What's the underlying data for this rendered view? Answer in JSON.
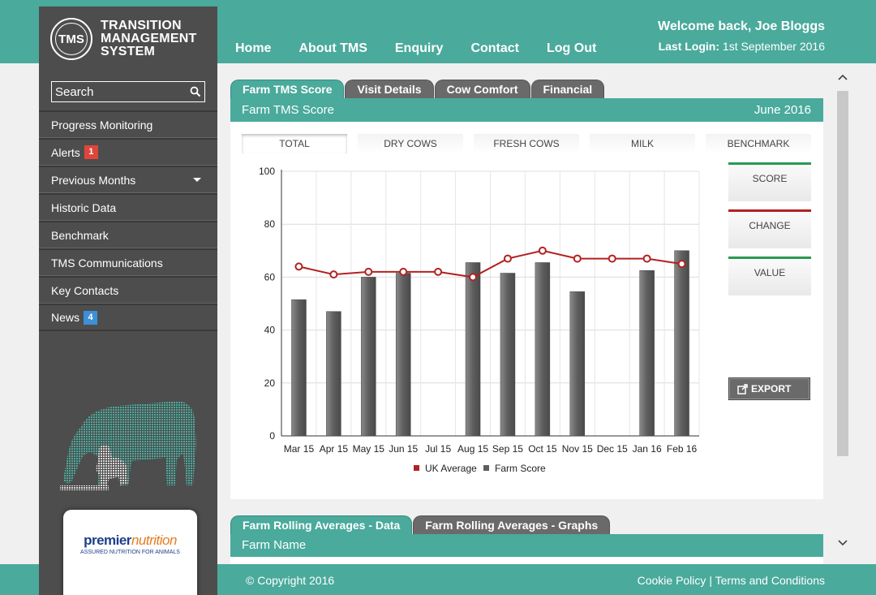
{
  "brand": {
    "badge": "TMS",
    "line1": "TRANSITION",
    "line2": "MANAGEMENT",
    "line3": "SYSTEM"
  },
  "search": {
    "placeholder": "Search"
  },
  "sidebar": {
    "items": [
      {
        "label": "Progress Monitoring"
      },
      {
        "label": "Alerts",
        "badge": "1"
      },
      {
        "label": "Previous Months"
      },
      {
        "label": "Historic Data"
      },
      {
        "label": "Benchmark"
      },
      {
        "label": "TMS Communications"
      },
      {
        "label": "Key Contacts"
      },
      {
        "label": "News",
        "badge": "4"
      }
    ]
  },
  "sponsor": {
    "name_main": "premier",
    "name_accent": "nutrition",
    "tagline": "ASSURED NUTRITION FOR ANIMALS"
  },
  "topnav": [
    "Home",
    "About TMS",
    "Enquiry",
    "Contact",
    "Log Out"
  ],
  "header": {
    "welcome": "Welcome back, Joe Bloggs",
    "last_login_label": "Last Login:",
    "last_login_value": "1st September 2016"
  },
  "tabs": [
    {
      "label": "Farm TMS Score",
      "active": true
    },
    {
      "label": "Visit Details",
      "active": false
    },
    {
      "label": "Cow Comfort",
      "active": false
    },
    {
      "label": "Financial",
      "active": false
    }
  ],
  "panel": {
    "title": "Farm TMS Score",
    "period": "June 2016"
  },
  "subtabs": [
    "TOTAL",
    "DRY COWS",
    "FRESH COWS",
    "MILK",
    "BENCHMARK"
  ],
  "side_cards": [
    "SCORE",
    "CHANGE",
    "VALUE"
  ],
  "export_label": "EXPORT",
  "chart_data": {
    "type": "bar",
    "categories": [
      "Mar 15",
      "Apr 15",
      "May 15",
      "Jun 15",
      "Jul 15",
      "Aug 15",
      "Sep 15",
      "Oct 15",
      "Nov 15",
      "Dec 15",
      "Jan 16",
      "Feb 16"
    ],
    "series": [
      {
        "name": "UK Average",
        "type": "line",
        "color": "#b22222",
        "values": [
          64,
          61,
          62,
          62,
          62,
          60,
          67,
          70,
          67,
          67,
          67,
          65
        ]
      },
      {
        "name": "Farm Score",
        "type": "bar",
        "color": "#5e5e5e",
        "values": [
          51.5,
          47,
          60,
          61.5,
          null,
          65.5,
          61.5,
          65.5,
          54.5,
          null,
          62.5,
          70
        ]
      }
    ],
    "yticks": [
      0,
      20,
      40,
      60,
      80,
      100
    ],
    "ylim": [
      0,
      100
    ],
    "grid": true,
    "legend": "bottom-center"
  },
  "tabs2": [
    {
      "label": "Farm Rolling Averages - Data",
      "active": true
    },
    {
      "label": "Farm Rolling Averages - Graphs",
      "active": false
    }
  ],
  "panel2": {
    "title": "Farm Name"
  },
  "footer": {
    "copyright": "© Copyright 2016",
    "cookie": "Cookie Policy",
    "separator": "|",
    "terms": "Terms and Conditions"
  }
}
